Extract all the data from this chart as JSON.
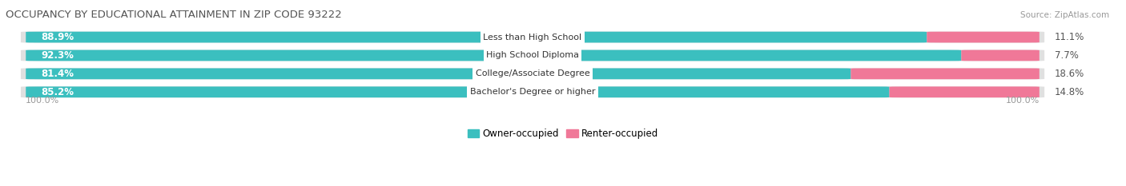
{
  "title": "OCCUPANCY BY EDUCATIONAL ATTAINMENT IN ZIP CODE 93222",
  "source": "Source: ZipAtlas.com",
  "categories": [
    "Less than High School",
    "High School Diploma",
    "College/Associate Degree",
    "Bachelor's Degree or higher"
  ],
  "owner_pct": [
    88.9,
    92.3,
    81.4,
    85.2
  ],
  "renter_pct": [
    11.1,
    7.7,
    18.6,
    14.8
  ],
  "owner_color": "#3bbfbf",
  "renter_color": "#f07898",
  "bar_bg_color": "#e0e0e0",
  "title_color": "#555555",
  "axis_label_color": "#999999",
  "legend_owner": "Owner-occupied",
  "legend_renter": "Renter-occupied",
  "x_left_label": "100.0%",
  "x_right_label": "100.0%",
  "figsize": [
    14.06,
    2.33
  ],
  "dpi": 100
}
